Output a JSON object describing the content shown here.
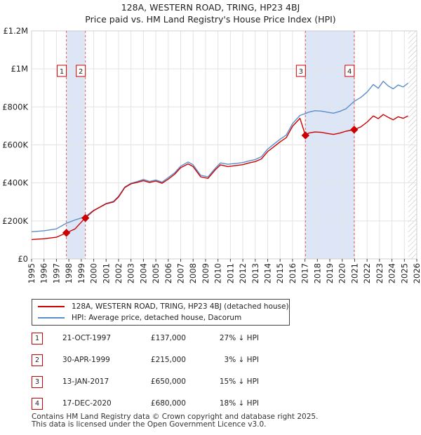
{
  "chart_data": {
    "type": "line",
    "title": "128A, WESTERN ROAD, TRING, HP23 4BJ",
    "subtitle": "Price paid vs. HM Land Registry's House Price Index (HPI)",
    "xlim": [
      1995,
      2026
    ],
    "ylim": [
      0,
      1200000
    ],
    "x_ticks": [
      "1995",
      "1996",
      "1997",
      "1998",
      "1999",
      "2000",
      "2001",
      "2002",
      "2003",
      "2004",
      "2005",
      "2006",
      "2007",
      "2008",
      "2009",
      "2010",
      "2011",
      "2012",
      "2013",
      "2014",
      "2015",
      "2016",
      "2017",
      "2018",
      "2019",
      "2020",
      "2021",
      "2022",
      "2023",
      "2024",
      "2025",
      "2026"
    ],
    "y_ticks": [
      {
        "value": 0,
        "label": "£0"
      },
      {
        "value": 200000,
        "label": "£200K"
      },
      {
        "value": 400000,
        "label": "£400K"
      },
      {
        "value": 600000,
        "label": "£600K"
      },
      {
        "value": 800000,
        "label": "£800K"
      },
      {
        "value": 1000000,
        "label": "£1M"
      },
      {
        "value": 1200000,
        "label": "£1.2M"
      }
    ],
    "grid": true,
    "colors": {
      "property": "#cc0000",
      "hpi": "#5b8ec9",
      "band": "#dde6f7",
      "marker_line": "#e06060",
      "future_hatch": "#bbbbbb"
    },
    "series": [
      {
        "name": "128A, WESTERN ROAD, TRING, HP23 4BJ (detached house)",
        "x": [
          1995.0,
          1996.0,
          1997.0,
          1997.8,
          1998.5,
          1999.3,
          2000.0,
          2000.5,
          2001.0,
          2001.6,
          2002.0,
          2002.5,
          2003.0,
          2003.5,
          2004.0,
          2004.5,
          2005.0,
          2005.5,
          2006.0,
          2006.5,
          2007.0,
          2007.6,
          2008.0,
          2008.6,
          2009.2,
          2009.8,
          2010.2,
          2010.8,
          2011.5,
          2012.0,
          2012.5,
          2013.0,
          2013.5,
          2014.0,
          2014.5,
          2015.0,
          2015.5,
          2016.0,
          2016.6,
          2017.04,
          2017.3,
          2017.8,
          2018.3,
          2018.8,
          2019.3,
          2019.8,
          2020.3,
          2020.96,
          2021.5,
          2022.0,
          2022.5,
          2022.9,
          2023.3,
          2023.7,
          2024.1,
          2024.5,
          2024.9,
          2025.3
        ],
        "y": [
          102000,
          106000,
          114000,
          137000,
          158000,
          215000,
          254000,
          272000,
          290000,
          300000,
          326000,
          375000,
          395000,
          403000,
          412000,
          402000,
          410000,
          398000,
          420000,
          445000,
          480000,
          500000,
          486000,
          432000,
          424000,
          470000,
          495000,
          486000,
          492000,
          496000,
          505000,
          512000,
          526000,
          565000,
          590000,
          616000,
          638000,
          698000,
          740000,
          650000,
          662000,
          668000,
          666000,
          660000,
          655000,
          662000,
          672000,
          680000,
          695000,
          720000,
          752000,
          738000,
          760000,
          745000,
          732000,
          748000,
          740000,
          752000
        ]
      },
      {
        "name": "HPI: Average price, detached house, Dacorum",
        "x": [
          1995.0,
          1996.0,
          1997.0,
          1997.8,
          1998.5,
          1999.3,
          2000.0,
          2000.5,
          2001.0,
          2001.6,
          2002.0,
          2002.5,
          2003.0,
          2003.5,
          2004.0,
          2004.5,
          2005.0,
          2005.5,
          2006.0,
          2006.5,
          2007.0,
          2007.6,
          2008.0,
          2008.6,
          2009.2,
          2009.8,
          2010.2,
          2010.8,
          2011.5,
          2012.0,
          2012.5,
          2013.0,
          2013.5,
          2014.0,
          2014.5,
          2015.0,
          2015.5,
          2016.0,
          2016.6,
          2017.04,
          2017.3,
          2017.8,
          2018.3,
          2018.8,
          2019.3,
          2019.8,
          2020.3,
          2020.96,
          2021.5,
          2022.0,
          2022.5,
          2022.9,
          2023.3,
          2023.7,
          2024.1,
          2024.5,
          2024.9,
          2025.3
        ],
        "y": [
          143000,
          148000,
          158000,
          188000,
          205000,
          222000,
          256000,
          273000,
          292000,
          303000,
          330000,
          378000,
          398000,
          407000,
          418000,
          408000,
          415000,
          404000,
          428000,
          452000,
          488000,
          510000,
          495000,
          440000,
          432000,
          478000,
          505000,
          498000,
          503000,
          507000,
          516000,
          523000,
          538000,
          578000,
          604000,
          630000,
          652000,
          712000,
          755000,
          765000,
          772000,
          780000,
          778000,
          772000,
          767000,
          776000,
          790000,
          829000,
          850000,
          878000,
          918000,
          898000,
          935000,
          910000,
          895000,
          915000,
          905000,
          925000
        ]
      }
    ],
    "sale_markers": [
      {
        "label": "1",
        "x": 1997.8,
        "y": 137000
      },
      {
        "label": "2",
        "x": 1999.33,
        "y": 215000
      },
      {
        "label": "3",
        "x": 2017.04,
        "y": 650000
      },
      {
        "label": "4",
        "x": 2020.96,
        "y": 680000
      }
    ],
    "shaded_bands": [
      [
        1997.8,
        1999.33
      ],
      [
        2017.04,
        2020.96
      ]
    ],
    "forecast_from": 2025.3
  },
  "legend": {
    "property_label": "128A, WESTERN ROAD, TRING, HP23 4BJ (detached house)",
    "hpi_label": "HPI: Average price, detached house, Dacorum"
  },
  "sales": [
    {
      "num": "1",
      "date": "21-OCT-1997",
      "price": "£137,000",
      "hpi": "27% ↓ HPI"
    },
    {
      "num": "2",
      "date": "30-APR-1999",
      "price": "£215,000",
      "hpi": "3% ↓ HPI"
    },
    {
      "num": "3",
      "date": "13-JAN-2017",
      "price": "£650,000",
      "hpi": "15% ↓ HPI"
    },
    {
      "num": "4",
      "date": "17-DEC-2020",
      "price": "£680,000",
      "hpi": "18% ↓ HPI"
    }
  ],
  "footer": {
    "line1": "Contains HM Land Registry data © Crown copyright and database right 2025.",
    "line2": "This data is licensed under the Open Government Licence v3.0."
  }
}
